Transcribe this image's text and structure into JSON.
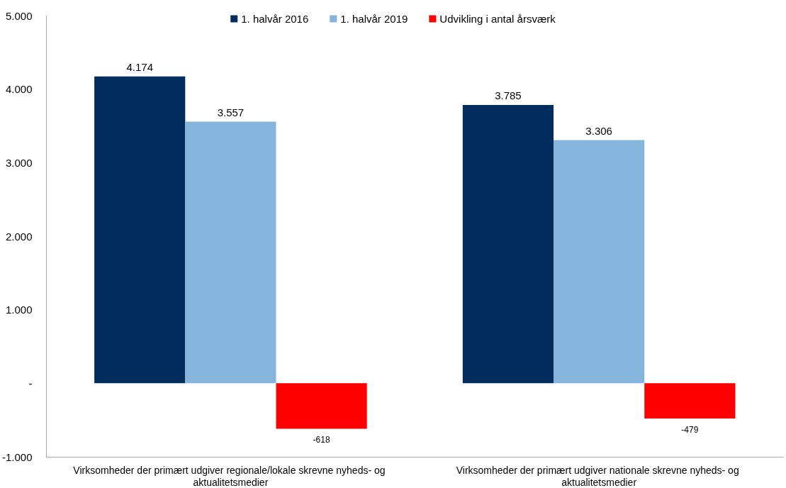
{
  "chart_data": {
    "type": "bar",
    "categories": [
      "Virksomheder der primært udgiver regionale/lokale skrevne nyheds- og aktualitetsmedier",
      "Virksomheder der primært udgiver nationale skrevne nyheds- og aktualitetsmedier"
    ],
    "series": [
      {
        "name": "1. halvår 2016",
        "color": "#002d5e",
        "values": [
          4174,
          3785
        ],
        "value_labels": [
          "4.174",
          "3.785"
        ]
      },
      {
        "name": "1. halvår 2019",
        "color": "#85b5dd",
        "values": [
          3557,
          3306
        ],
        "value_labels": [
          "3.557",
          "3.306"
        ]
      },
      {
        "name": "Udvikling i antal årsværk",
        "color": "#ff0000",
        "values": [
          -618,
          -479
        ],
        "value_labels": [
          "-618",
          "-479"
        ]
      }
    ],
    "ylim": [
      -1000,
      5000
    ],
    "yticks": [
      {
        "value": -1000,
        "label": "-1.000"
      },
      {
        "value": 0,
        "label": "-"
      },
      {
        "value": 1000,
        "label": "1.000"
      },
      {
        "value": 2000,
        "label": "2.000"
      },
      {
        "value": 3000,
        "label": "3.000"
      },
      {
        "value": 4000,
        "label": "4.000"
      },
      {
        "value": 5000,
        "label": "5.000"
      }
    ],
    "grid": false,
    "legend": "top"
  }
}
